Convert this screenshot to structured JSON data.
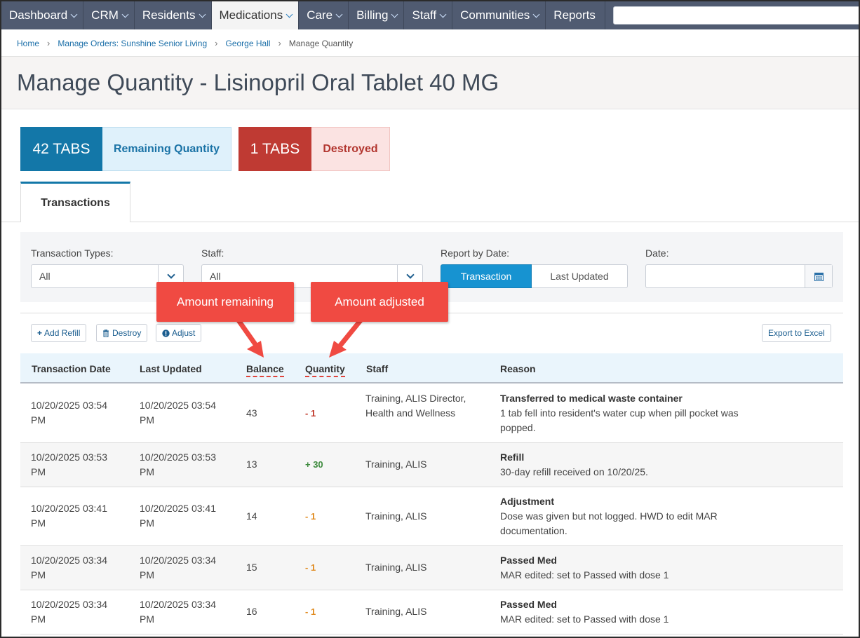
{
  "nav": {
    "items": [
      {
        "label": "Dashboard",
        "chevron": true,
        "active": false
      },
      {
        "label": "CRM",
        "chevron": true,
        "active": false
      },
      {
        "label": "Residents",
        "chevron": true,
        "active": false
      },
      {
        "label": "Medications",
        "chevron": true,
        "active": true
      },
      {
        "label": "Care",
        "chevron": true,
        "active": false
      },
      {
        "label": "Billing",
        "chevron": true,
        "active": false
      },
      {
        "label": "Staff",
        "chevron": true,
        "active": false
      },
      {
        "label": "Communities",
        "chevron": true,
        "active": false
      },
      {
        "label": "Reports",
        "chevron": false,
        "active": false
      }
    ],
    "search_value": "",
    "search_icon": "search-icon"
  },
  "breadcrumb": {
    "items": [
      "Home",
      "Manage Orders: Sunshine Senior Living",
      "George Hall"
    ],
    "current": "Manage Quantity"
  },
  "page": {
    "title": "Manage Quantity - Lisinopril Oral Tablet 40 MG"
  },
  "stats": {
    "remaining": {
      "value": "42 TABS",
      "label": "Remaining Quantity",
      "color": "#1377a8"
    },
    "destroyed": {
      "value": "1 TABS",
      "label": "Destroyed",
      "color": "#bf3a33"
    }
  },
  "tabs": {
    "active": "Transactions"
  },
  "filters": {
    "transaction_types": {
      "label": "Transaction Types:",
      "value": "All"
    },
    "staff": {
      "label": "Staff:",
      "value": "All"
    },
    "report_by_date": {
      "label": "Report by Date:",
      "options": [
        "Transaction",
        "Last Updated"
      ],
      "selected": "Transaction"
    },
    "date": {
      "label": "Date:",
      "value": "",
      "icon": "calendar-icon"
    }
  },
  "toolbar": {
    "add_refill": "Add Refill",
    "destroy": "Destroy",
    "adjust": "Adjust",
    "export": "Export to Excel"
  },
  "table": {
    "columns": [
      "Transaction Date",
      "Last Updated",
      "Balance",
      "Quantity",
      "Staff",
      "Reason"
    ],
    "rows": [
      {
        "date": "10/20/2025 03:54 PM",
        "updated": "10/20/2025 03:54 PM",
        "balance": "43",
        "quantity": "- 1",
        "qty_color": "#c0392b",
        "staff": "Training, ALIS Director, Health and Wellness",
        "reason_title": "Transferred to medical waste container",
        "reason_text": "1 tab fell into resident's water cup when pill pocket was popped."
      },
      {
        "date": "10/20/2025 03:53 PM",
        "updated": "10/20/2025 03:53 PM",
        "balance": "13",
        "quantity": "+ 30",
        "qty_color": "#3c8a3c",
        "staff": "Training, ALIS",
        "reason_title": "Refill",
        "reason_text": "30-day refill received on 10/20/25."
      },
      {
        "date": "10/20/2025 03:41 PM",
        "updated": "10/20/2025 03:41 PM",
        "balance": "14",
        "quantity": "- 1",
        "qty_color": "#e08a1e",
        "staff": "Training, ALIS",
        "reason_title": "Adjustment",
        "reason_text": "Dose was given but not logged. HWD to edit MAR documentation."
      },
      {
        "date": "10/20/2025 03:34 PM",
        "updated": "10/20/2025 03:34 PM",
        "balance": "15",
        "quantity": "- 1",
        "qty_color": "#e08a1e",
        "staff": "Training, ALIS",
        "reason_title": "Passed Med",
        "reason_text": "MAR edited: set to Passed with dose 1"
      },
      {
        "date": "10/20/2025 03:34 PM",
        "updated": "10/20/2025 03:34 PM",
        "balance": "16",
        "quantity": "- 1",
        "qty_color": "#e08a1e",
        "staff": "Training, ALIS",
        "reason_title": "Passed Med",
        "reason_text": "MAR edited: set to Passed with dose 1"
      }
    ]
  },
  "annotations": {
    "balance_callout": "Amount remaining",
    "quantity_callout": "Amount adjusted",
    "color": "#f04a42"
  }
}
